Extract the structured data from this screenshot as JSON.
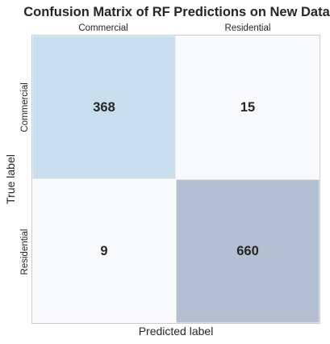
{
  "chart_data": {
    "type": "heatmap",
    "title": "Confusion Matrix of RF Predictions on New Data",
    "xlabel": "Predicted label",
    "ylabel": "True label",
    "x_categories": [
      "Commercial",
      "Residential"
    ],
    "y_categories": [
      "Commercial",
      "Residential"
    ],
    "x_tick_position": "top",
    "values": [
      [
        368,
        15
      ],
      [
        9,
        660
      ]
    ],
    "colormap": {
      "min_color": "#f8fafd",
      "mid_color": "#cde3f0",
      "max_color": "#b4bfd1"
    },
    "grid": false,
    "cell_borders": true,
    "border_color": "#ffffff"
  }
}
